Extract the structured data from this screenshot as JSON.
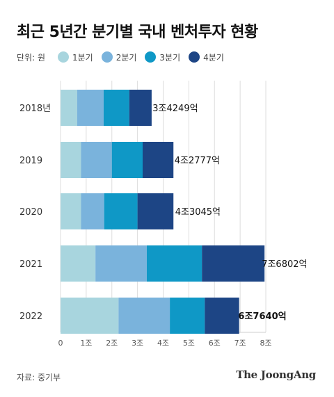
{
  "title": "최근 5년간 분기별 국내 벤처투자 현황",
  "unit_label": "단위: 원",
  "legend": [
    {
      "label": "1분기",
      "color": "#a8d5de"
    },
    {
      "label": "2분기",
      "color": "#7ab3dc"
    },
    {
      "label": "3분기",
      "color": "#0f98c6"
    },
    {
      "label": "4분기",
      "color": "#1d4585"
    }
  ],
  "source": "자료: 중기부",
  "logo": "The JoongAng",
  "chart_data": {
    "type": "bar",
    "orientation": "horizontal",
    "stacked": true,
    "categories": [
      "2018년",
      "2019",
      "2020",
      "2021",
      "2022"
    ],
    "series": [
      {
        "name": "1분기",
        "color": "#a8d5de",
        "values": [
          0.65,
          0.8,
          0.8,
          1.36,
          2.26
        ]
      },
      {
        "name": "2분기",
        "color": "#7ab3dc",
        "values": [
          1.03,
          1.2,
          0.9,
          2.0,
          2.0
        ]
      },
      {
        "name": "3분기",
        "color": "#0f98c6",
        "values": [
          1.0,
          1.2,
          1.3,
          2.15,
          1.36
        ]
      },
      {
        "name": "4분기",
        "color": "#1d4585",
        "values": [
          0.87,
          1.2,
          1.4,
          2.44,
          1.34
        ]
      }
    ],
    "totals": [
      3.4249,
      4.2777,
      4.3045,
      7.6802,
      6.764
    ],
    "total_labels": [
      "3조4249억",
      "4조2777억",
      "4조3045억",
      "7조6802억",
      "6조7640억"
    ],
    "xticks": [
      0,
      1,
      2,
      3,
      4,
      5,
      6,
      7,
      8
    ],
    "xtick_labels": [
      "0",
      "1조",
      "2조",
      "3조",
      "4조",
      "5조",
      "6조",
      "7조",
      "8조"
    ],
    "xlim": [
      0,
      8
    ],
    "grid": true,
    "legend_position": "top"
  }
}
